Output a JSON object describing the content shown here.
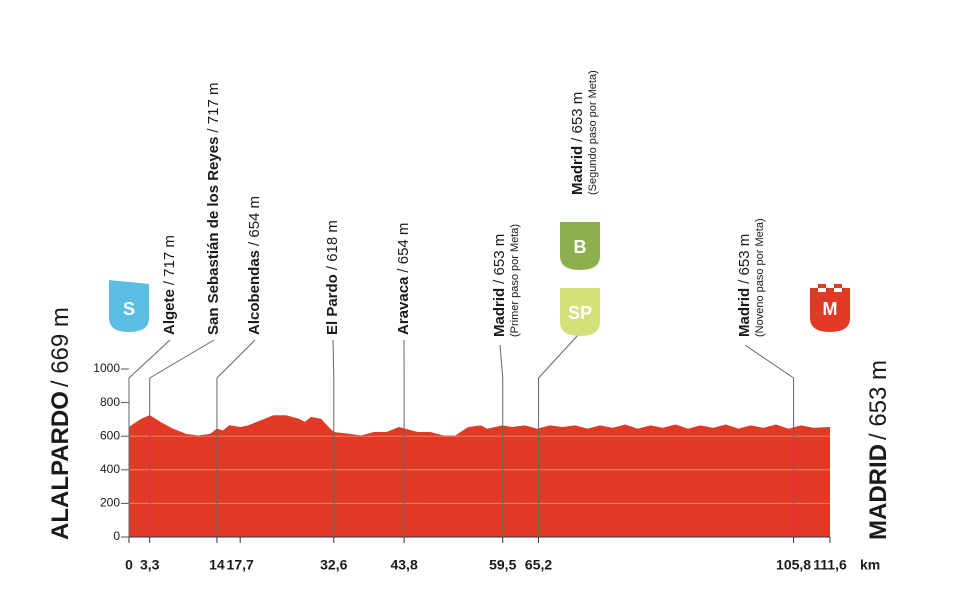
{
  "chart_data": {
    "type": "area",
    "color": "#e03a24",
    "start": {
      "name": "ALALPARDO",
      "detail": "/ 669 m"
    },
    "finish": {
      "name": "MADRID",
      "detail": "/ 653 m"
    },
    "unit": "km",
    "icons": [
      "S",
      "B",
      "SP",
      "M"
    ],
    "waypoints": [
      {
        "name": "Algete",
        "detail": "/ 717 m"
      },
      {
        "name": "San Sebastián de los Reyes",
        "detail": "/ 717 m"
      },
      {
        "name": "Alcobendas",
        "detail": "/ 654 m"
      },
      {
        "name": "El Pardo",
        "detail": "/ 618 m"
      },
      {
        "name": "Aravaca",
        "detail": "/ 654 m"
      },
      {
        "name": "Madrid",
        "detail": "/ 653 m",
        "note": "(Primer paso por Meta)"
      },
      {
        "name": "Madrid",
        "detail": "/ 653 m",
        "note": "(Segundo paso por Meta)"
      },
      {
        "name": "Madrid",
        "detail": "/ 653 m",
        "note": "(Noveno paso por Meta)"
      }
    ],
    "x": [
      0,
      2,
      3.3,
      5,
      7,
      9,
      11,
      13,
      14,
      15,
      16,
      17.7,
      19,
      21,
      23,
      25,
      27,
      28,
      29,
      30.5,
      32,
      32.6,
      35,
      37,
      39,
      41,
      43,
      44,
      46,
      48,
      50,
      52,
      54,
      56,
      57,
      59.5,
      61,
      63,
      65,
      67,
      69,
      71,
      73,
      75,
      77,
      79,
      81,
      83,
      85,
      87,
      89,
      91,
      93,
      95,
      97,
      99,
      101,
      103,
      105,
      107,
      109,
      111.6
    ],
    "values": [
      650,
      700,
      720,
      680,
      640,
      610,
      600,
      610,
      640,
      630,
      660,
      650,
      660,
      690,
      720,
      720,
      700,
      680,
      710,
      700,
      640,
      620,
      610,
      600,
      620,
      620,
      650,
      640,
      620,
      620,
      600,
      600,
      650,
      660,
      640,
      660,
      650,
      660,
      640,
      660,
      650,
      660,
      640,
      660,
      645,
      665,
      640,
      660,
      645,
      665,
      640,
      660,
      645,
      665,
      640,
      660,
      645,
      665,
      640,
      660,
      645,
      650
    ],
    "xlim": [
      0,
      111.6
    ],
    "xticks": [
      0,
      {
        "value": 3.3,
        "label": "3,3"
      },
      14,
      {
        "value": 17.7,
        "label": "17,7"
      },
      {
        "value": 32.6,
        "label": "32,6"
      },
      {
        "value": 43.8,
        "label": "43,8"
      },
      {
        "value": 59.5,
        "label": "59,5"
      },
      {
        "value": 65.2,
        "label": "65,2"
      },
      {
        "value": 105.8,
        "label": "105,8"
      },
      {
        "value": 111.6,
        "label": "111,6"
      }
    ],
    "ylim": [
      0,
      1000
    ],
    "yticks": [
      0,
      200,
      400,
      600,
      800,
      1000
    ],
    "grid": true
  }
}
